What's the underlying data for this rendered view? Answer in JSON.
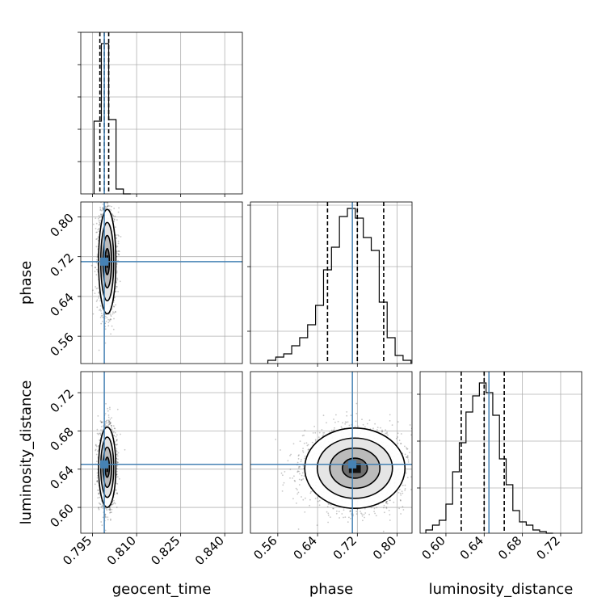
{
  "colors": {
    "truth": "#4682b4",
    "hist": "#000000",
    "grid": "#b0b0b0",
    "points": "#000000"
  },
  "chart_data": {
    "type": "corner",
    "title": "",
    "parameters": [
      "geocent_time",
      "phase",
      "luminosity_distance"
    ],
    "truths": {
      "geocent_time": 0.799,
      "phase": 0.71,
      "luminosity_distance": 0.645
    },
    "ranges": {
      "geocent_time": [
        0.791,
        0.846
      ],
      "phase": [
        0.505,
        0.83
      ],
      "luminosity_distance": [
        0.573,
        0.742
      ]
    },
    "ticks": {
      "geocent_time": [
        "0.795",
        "0.810",
        "0.825",
        "0.840"
      ],
      "phase": [
        "0.56",
        "0.64",
        "0.72",
        "0.80"
      ],
      "luminosity_distance": [
        "0.60",
        "0.64",
        "0.68",
        "0.72"
      ]
    },
    "grid": true,
    "histograms": [
      {
        "parameter": "geocent_time",
        "bin_edges": [
          0.7955,
          0.798,
          0.8005,
          0.803,
          0.8055,
          0.808
        ],
        "counts": [
          0.45,
          0.93,
          0.46,
          0.03,
          0.0
        ],
        "quantiles": [
          0.7975,
          0.799,
          0.8005
        ],
        "ymax": 1.0,
        "yticks": [
          0.2,
          0.4,
          0.6,
          0.8,
          1.0
        ]
      },
      {
        "parameter": "phase",
        "bin_edges": [
          0.54,
          0.556,
          0.572,
          0.588,
          0.604,
          0.62,
          0.636,
          0.652,
          0.668,
          0.684,
          0.7,
          0.716,
          0.732,
          0.748,
          0.764,
          0.78,
          0.796,
          0.812,
          0.828
        ],
        "counts": [
          0.02,
          0.04,
          0.06,
          0.11,
          0.16,
          0.24,
          0.36,
          0.58,
          0.72,
          0.91,
          0.96,
          0.9,
          0.78,
          0.7,
          0.38,
          0.16,
          0.05,
          0.02
        ],
        "quantiles": [
          0.66,
          0.72,
          0.773
        ],
        "ymax": 1.0,
        "yticks": [
          0.2,
          0.6,
          0.98
        ]
      },
      {
        "parameter": "luminosity_distance",
        "bin_edges": [
          0.579,
          0.586,
          0.593,
          0.6,
          0.607,
          0.614,
          0.621,
          0.628,
          0.635,
          0.642,
          0.649,
          0.656,
          0.663,
          0.67,
          0.677,
          0.684,
          0.691,
          0.698,
          0.705,
          0.712
        ],
        "counts": [
          0.02,
          0.05,
          0.08,
          0.18,
          0.38,
          0.56,
          0.75,
          0.85,
          0.93,
          0.87,
          0.73,
          0.46,
          0.3,
          0.14,
          0.07,
          0.05,
          0.02,
          0.01,
          0.0
        ],
        "quantiles": [
          0.616,
          0.64,
          0.661
        ],
        "ymax": 1.0,
        "yticks": [
          0.28,
          0.57,
          0.86
        ]
      }
    ],
    "scatter_panels": [
      {
        "x": "geocent_time",
        "y": "phase",
        "center": [
          0.8,
          0.71
        ],
        "spread": [
          0.0014,
          0.05
        ],
        "n_points": 2200,
        "contour_levels": 4
      },
      {
        "x": "geocent_time",
        "y": "luminosity_distance",
        "center": [
          0.8,
          0.642
        ],
        "spread": [
          0.0014,
          0.02
        ],
        "n_points": 2200,
        "contour_levels": 4
      },
      {
        "x": "phase",
        "y": "luminosity_distance",
        "center": [
          0.715,
          0.641
        ],
        "spread": [
          0.048,
          0.02
        ],
        "n_points": 2600,
        "contour_levels": 4
      }
    ]
  }
}
